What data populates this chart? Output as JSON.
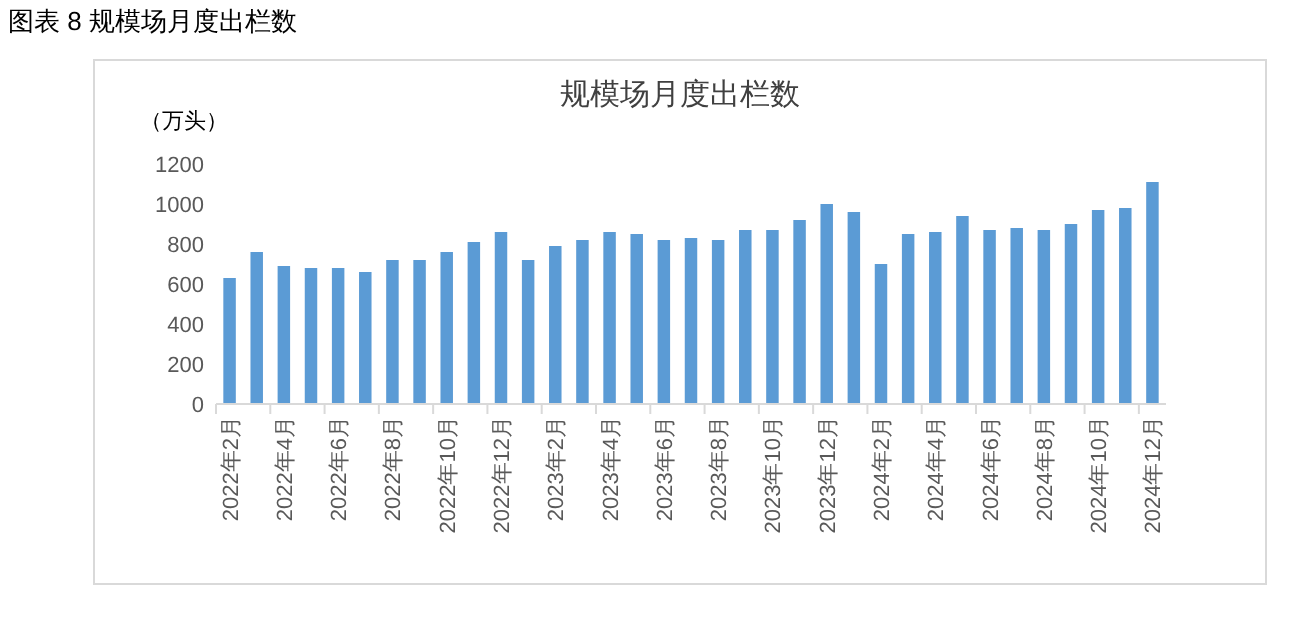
{
  "chart_data": {
    "type": "bar",
    "title": "图表 8  规模场月度出栏数",
    "subtitle": "规模场月度出栏数",
    "ylabel": "（万头）",
    "categories": [
      "2022年2月",
      null,
      "2022年4月",
      null,
      "2022年6月",
      null,
      "2022年8月",
      null,
      "2022年10月",
      null,
      "2022年12月",
      null,
      "2023年2月",
      null,
      "2023年4月",
      null,
      "2023年6月",
      null,
      "2023年8月",
      null,
      "2023年10月",
      null,
      "2023年12月",
      null,
      "2024年2月",
      null,
      "2024年4月",
      null,
      "2024年6月",
      null,
      "2024年8月",
      null,
      "2024年10月",
      null,
      "2024年12月"
    ],
    "values": [
      630,
      760,
      690,
      680,
      680,
      660,
      720,
      720,
      760,
      810,
      860,
      720,
      790,
      820,
      860,
      850,
      820,
      830,
      820,
      870,
      870,
      920,
      1000,
      960,
      700,
      850,
      860,
      940,
      870,
      880,
      870,
      900,
      970,
      980,
      1110
    ],
    "color": "#5b9bd5",
    "ylim": [
      0,
      1200
    ],
    "yticks": [
      0,
      200,
      400,
      600,
      800,
      1000,
      1200
    ],
    "grid": false
  }
}
